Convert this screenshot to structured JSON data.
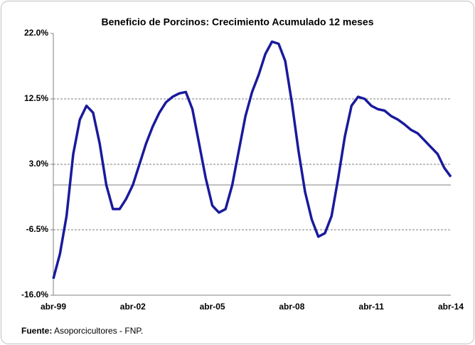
{
  "chart_data": {
    "type": "line",
    "title": "Beneficio de Porcinos: Crecimiento Acumulado 12 meses",
    "categories": [
      "abr-99",
      null,
      null,
      null,
      null,
      null,
      null,
      null,
      null,
      null,
      null,
      null,
      "abr-02",
      null,
      null,
      null,
      null,
      null,
      null,
      null,
      null,
      null,
      null,
      null,
      "abr-05",
      null,
      null,
      null,
      null,
      null,
      null,
      null,
      null,
      null,
      null,
      null,
      "abr-08",
      null,
      null,
      null,
      null,
      null,
      null,
      null,
      null,
      null,
      null,
      null,
      "abr-11",
      null,
      null,
      null,
      null,
      null,
      null,
      null,
      null,
      null,
      null,
      null,
      "abr-14"
    ],
    "values": [
      -13.6,
      -10,
      -4.5,
      4.5,
      9.5,
      11.5,
      10.5,
      6,
      0,
      -3.5,
      -3.5,
      -2,
      0,
      3,
      6,
      8.5,
      10.5,
      12,
      12.8,
      13.3,
      13.5,
      11,
      6,
      1,
      -3,
      -4,
      -3.5,
      0,
      5,
      10,
      13.5,
      16,
      19,
      20.8,
      20.5,
      18,
      12,
      5,
      -1,
      -5,
      -7.5,
      -7,
      -4.5,
      1,
      7,
      11.5,
      12.8,
      12.5,
      11.5,
      11,
      10.8,
      10,
      9.5,
      8.8,
      8,
      7.5,
      6.5,
      5.5,
      4.5,
      2.5,
      1.2
    ],
    "color": "#1a1a9c",
    "ylim": [
      -16,
      22
    ],
    "yticks": [
      {
        "value": -16,
        "label": "-16.0%"
      },
      {
        "value": -6.5,
        "label": "-6.5%"
      },
      {
        "value": 3,
        "label": "3.0%"
      },
      {
        "value": 12.5,
        "label": "12.5%"
      },
      {
        "value": 22,
        "label": "22.0%"
      }
    ],
    "grid": true,
    "source_label": "Fuente:",
    "source_text": "Asoporcicultores - FNP."
  }
}
